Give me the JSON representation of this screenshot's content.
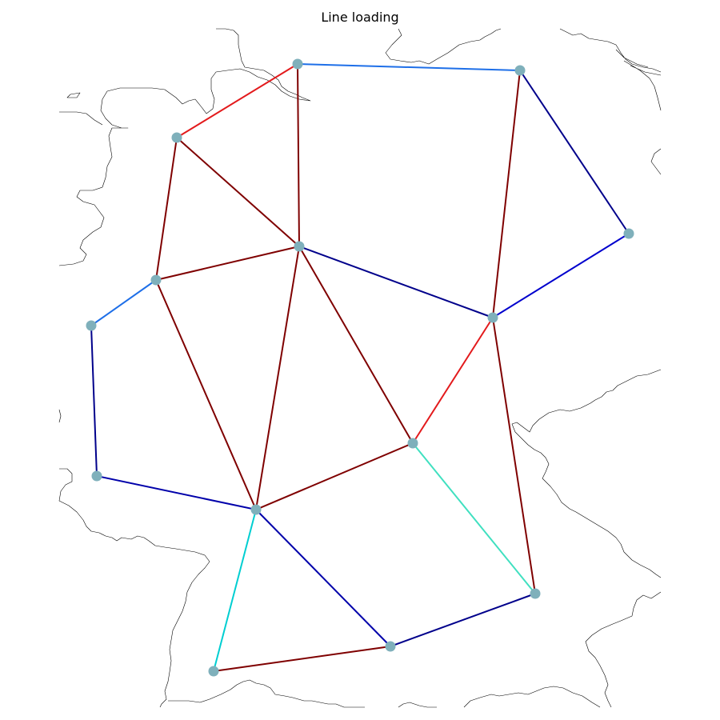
{
  "title": "Line loading",
  "colors": {
    "background": "#ffffff",
    "coastline": "#000000",
    "bus": "#7fb0bb",
    "loading_scale": [
      "#00008b",
      "#0000cd",
      "#1e6fe8",
      "#00ced1",
      "#40e0c0",
      "#e31a1c",
      "#7f0000"
    ]
  },
  "buses": [
    {
      "id": "b1"
    },
    {
      "id": "b2"
    },
    {
      "id": "b3"
    },
    {
      "id": "b4"
    },
    {
      "id": "b5"
    },
    {
      "id": "b6"
    },
    {
      "id": "b7"
    },
    {
      "id": "b8"
    },
    {
      "id": "b9"
    },
    {
      "id": "b10"
    },
    {
      "id": "b11"
    },
    {
      "id": "b12"
    },
    {
      "id": "b13"
    },
    {
      "id": "b14"
    },
    {
      "id": "b15"
    }
  ],
  "lines": [
    {
      "from": "b1",
      "to": "b2",
      "color": "#1e6fe8"
    },
    {
      "from": "b1",
      "to": "b3",
      "color": "#e31a1c"
    },
    {
      "from": "b1",
      "to": "b4",
      "color": "#7f0000"
    },
    {
      "from": "b2",
      "to": "b6",
      "color": "#00008b"
    },
    {
      "from": "b2",
      "to": "b7",
      "color": "#7f0000"
    },
    {
      "from": "b3",
      "to": "b4",
      "color": "#7f0000"
    },
    {
      "from": "b3",
      "to": "b5",
      "color": "#7f0000"
    },
    {
      "from": "b4",
      "to": "b5",
      "color": "#7f0000"
    },
    {
      "from": "b4",
      "to": "b7",
      "color": "#00008b"
    },
    {
      "from": "b4",
      "to": "b10",
      "color": "#7f0000"
    },
    {
      "from": "b4",
      "to": "b11",
      "color": "#7f0000"
    },
    {
      "from": "b5",
      "to": "b8",
      "color": "#1e6fe8"
    },
    {
      "from": "b5",
      "to": "b11",
      "color": "#7f0000"
    },
    {
      "from": "b6",
      "to": "b7",
      "color": "#0000cd"
    },
    {
      "from": "b7",
      "to": "b10",
      "color": "#e31a1c"
    },
    {
      "from": "b7",
      "to": "b12",
      "color": "#7f0000"
    },
    {
      "from": "b8",
      "to": "b9",
      "color": "#00008b"
    },
    {
      "from": "b9",
      "to": "b11",
      "color": "#0000aa"
    },
    {
      "from": "b10",
      "to": "b11",
      "color": "#7f0000"
    },
    {
      "from": "b10",
      "to": "b12",
      "color": "#40e0c0"
    },
    {
      "from": "b11",
      "to": "b13",
      "color": "#0000aa"
    },
    {
      "from": "b11",
      "to": "b14",
      "color": "#00ced1"
    },
    {
      "from": "b12",
      "to": "b13",
      "color": "#00008b"
    },
    {
      "from": "b13",
      "to": "b14",
      "color": "#7f0000"
    }
  ]
}
